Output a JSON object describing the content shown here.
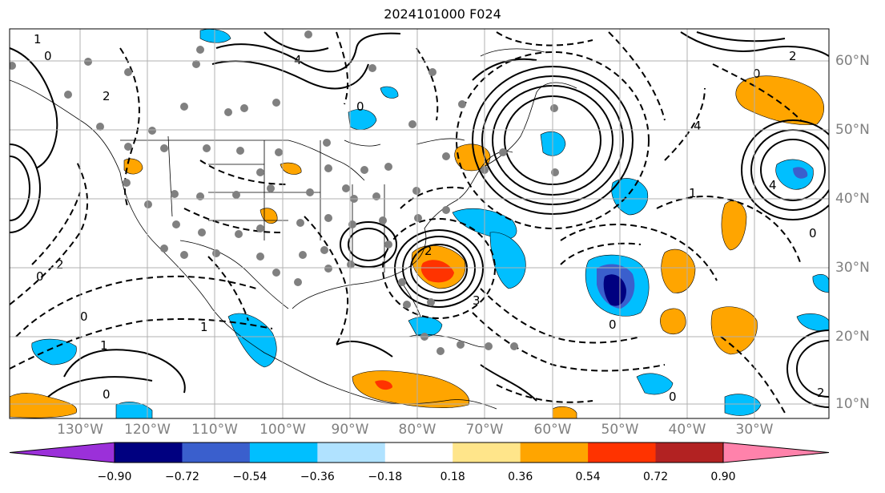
{
  "title": "2024101000 F024",
  "longitude_labels": [
    "130°W",
    "120°W",
    "110°W",
    "100°W",
    "90°W",
    "80°W",
    "70°W",
    "60°W",
    "50°W",
    "40°W",
    "30°W"
  ],
  "latitude_labels": [
    "60°N",
    "50°N",
    "40°N",
    "30°N",
    "20°N",
    "10°N"
  ],
  "colorbar": {
    "levels": [
      "−0.90",
      "−0.72",
      "−0.54",
      "−0.36",
      "−0.18",
      "0.18",
      "0.36",
      "0.54",
      "0.72",
      "0.90"
    ],
    "colors": [
      "#9b30d9",
      "#000080",
      "#3a5fcd",
      "#00bfff",
      "#b0e2ff",
      "#ffffff",
      "#ffe58a",
      "#ffa500",
      "#ff3300",
      "#b22222",
      "#ff82ab"
    ]
  },
  "colors": {
    "contour": "#000000",
    "grid": "#b0b0b0",
    "station_dot": "#808080",
    "axis_label": "#808080"
  }
}
